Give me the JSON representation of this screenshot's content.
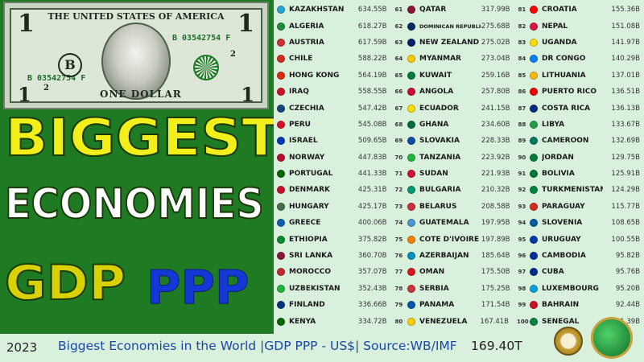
{
  "bill": {
    "top_text": "THE UNITED STATES OF AMERICA",
    "denomination": "1",
    "serial": "B 03542754 F",
    "seal_letter": "B",
    "plate": "2",
    "bottom_text": "ONE DOLLAR"
  },
  "headline": {
    "line1": "BIGGEST",
    "line2": "ECONOMIES",
    "line3": "GDP",
    "line4": "PPP"
  },
  "footer": {
    "year": "2023",
    "caption": "Biggest Economies in the World |GDP PPP - US$| Source:WB/IMF",
    "total": "169.40T"
  },
  "colors": {
    "headline_yellow": "#f3ef1a",
    "ppp_blue": "#1438d6",
    "caption_blue": "#1b47a8",
    "panel_green": "#1f7a24",
    "table_bg": "#d9f0dc"
  },
  "table": {
    "col1": [
      {
        "name": "KAZAKHSTAN",
        "value": "634.55B",
        "rank": "61",
        "flag": "#25a7d6"
      },
      {
        "name": "ALGERIA",
        "value": "618.27B",
        "rank": "62",
        "flag": "#1e8c3a"
      },
      {
        "name": "AUSTRIA",
        "value": "617.59B",
        "rank": "63",
        "flag": "#d32f2f"
      },
      {
        "name": "CHILE",
        "value": "588.22B",
        "rank": "64",
        "flag": "#d52b1e"
      },
      {
        "name": "HONG KONG",
        "value": "564.19B",
        "rank": "65",
        "flag": "#de2910"
      },
      {
        "name": "IRAQ",
        "value": "558.55B",
        "rank": "66",
        "flag": "#ce1126"
      },
      {
        "name": "CZECHIA",
        "value": "547.42B",
        "rank": "67",
        "flag": "#11457e"
      },
      {
        "name": "PERU",
        "value": "545.08B",
        "rank": "68",
        "flag": "#d91023"
      },
      {
        "name": "ISRAEL",
        "value": "509.65B",
        "rank": "69",
        "flag": "#0038b8"
      },
      {
        "name": "NORWAY",
        "value": "447.83B",
        "rank": "70",
        "flag": "#ba0c2f"
      },
      {
        "name": "PORTUGAL",
        "value": "441.33B",
        "rank": "71",
        "flag": "#006600"
      },
      {
        "name": "DENMARK",
        "value": "425.31B",
        "rank": "72",
        "flag": "#c8102e"
      },
      {
        "name": "HUNGARY",
        "value": "425.17B",
        "rank": "73",
        "flag": "#436f4d"
      },
      {
        "name": "GREECE",
        "value": "400.06B",
        "rank": "74",
        "flag": "#0d5eaf"
      },
      {
        "name": "ETHIOPIA",
        "value": "375.82B",
        "rank": "75",
        "flag": "#078930"
      },
      {
        "name": "SRI LANKA",
        "value": "360.70B",
        "rank": "76",
        "flag": "#8d153a"
      },
      {
        "name": "MOROCCO",
        "value": "357.07B",
        "rank": "77",
        "flag": "#c1272d"
      },
      {
        "name": "UZBEKISTAN",
        "value": "352.43B",
        "rank": "78",
        "flag": "#1eb53a"
      },
      {
        "name": "FINLAND",
        "value": "336.66B",
        "rank": "79",
        "flag": "#003580"
      },
      {
        "name": "KENYA",
        "value": "334.72B",
        "rank": "80",
        "flag": "#006600"
      }
    ],
    "col2": [
      {
        "name": "QATAR",
        "value": "317.99B",
        "rank": "81",
        "flag": "#8a1538"
      },
      {
        "name": "DOMINICAN REPUBLIC",
        "value": "275.68B",
        "rank": "82",
        "flag": "#002d62"
      },
      {
        "name": "NEW ZEALAND",
        "value": "275.02B",
        "rank": "83",
        "flag": "#012169"
      },
      {
        "name": "MYANMAR",
        "value": "273.04B",
        "rank": "84",
        "flag": "#fecb00"
      },
      {
        "name": "KUWAIT",
        "value": "259.16B",
        "rank": "85",
        "flag": "#007a3d"
      },
      {
        "name": "ANGOLA",
        "value": "257.80B",
        "rank": "86",
        "flag": "#cc092f"
      },
      {
        "name": "ECUADOR",
        "value": "241.15B",
        "rank": "87",
        "flag": "#ffdd00"
      },
      {
        "name": "GHANA",
        "value": "234.60B",
        "rank": "88",
        "flag": "#006b3f"
      },
      {
        "name": "SLOVAKIA",
        "value": "228.33B",
        "rank": "89",
        "flag": "#0b4ea2"
      },
      {
        "name": "TANZANIA",
        "value": "223.92B",
        "rank": "90",
        "flag": "#1eb53a"
      },
      {
        "name": "SUDAN",
        "value": "221.93B",
        "rank": "91",
        "flag": "#d21034"
      },
      {
        "name": "BULGARIA",
        "value": "210.32B",
        "rank": "92",
        "flag": "#00966e"
      },
      {
        "name": "BELARUS",
        "value": "208.58B",
        "rank": "93",
        "flag": "#c8313e"
      },
      {
        "name": "GUATEMALA",
        "value": "197.95B",
        "rank": "94",
        "flag": "#4997d0"
      },
      {
        "name": "COTE D'IVOIRE",
        "value": "197.89B",
        "rank": "95",
        "flag": "#f77f00"
      },
      {
        "name": "AZERBAIJAN",
        "value": "185.64B",
        "rank": "96",
        "flag": "#0092bc"
      },
      {
        "name": "OMAN",
        "value": "175.50B",
        "rank": "97",
        "flag": "#db161b"
      },
      {
        "name": "SERBIA",
        "value": "175.25B",
        "rank": "98",
        "flag": "#c6363c"
      },
      {
        "name": "PANAMA",
        "value": "171.54B",
        "rank": "99",
        "flag": "#005aa7"
      },
      {
        "name": "VENEZUELA",
        "value": "167.41B",
        "rank": "100",
        "flag": "#ffcc00"
      }
    ],
    "col3": [
      {
        "name": "CROATIA",
        "value": "155.36B",
        "flag": "#ff0000"
      },
      {
        "name": "NEPAL",
        "value": "151.08B",
        "flag": "#dc143c"
      },
      {
        "name": "UGANDA",
        "value": "141.97B",
        "flag": "#fcdc04"
      },
      {
        "name": "DR CONGO",
        "value": "140.29B",
        "flag": "#007fff"
      },
      {
        "name": "LITHUANIA",
        "value": "137.01B",
        "flag": "#fdb913"
      },
      {
        "name": "PUERTO RICO",
        "value": "136.51B",
        "flag": "#ed0000"
      },
      {
        "name": "COSTA RICA",
        "value": "136.13B",
        "flag": "#002b7f"
      },
      {
        "name": "LIBYA",
        "value": "133.67B",
        "flag": "#239e46"
      },
      {
        "name": "CAMEROON",
        "value": "132.69B",
        "flag": "#007a5e"
      },
      {
        "name": "JORDAN",
        "value": "129.75B",
        "flag": "#007a3d"
      },
      {
        "name": "BOLIVIA",
        "value": "125.91B",
        "flag": "#007934"
      },
      {
        "name": "TURKMENISTAN",
        "value": "124.29B",
        "flag": "#00843d"
      },
      {
        "name": "PARAGUAY",
        "value": "115.77B",
        "flag": "#d52b1e"
      },
      {
        "name": "SLOVENIA",
        "value": "108.65B",
        "flag": "#005da4"
      },
      {
        "name": "URUGUAY",
        "value": "100.55B",
        "flag": "#0038a8"
      },
      {
        "name": "CAMBODIA",
        "value": "95.82B",
        "flag": "#032ea1"
      },
      {
        "name": "CUBA",
        "value": "95.76B",
        "flag": "#002a8f"
      },
      {
        "name": "LUXEMBOURG",
        "value": "95.20B",
        "flag": "#00a1de"
      },
      {
        "name": "BAHRAIN",
        "value": "92.44B",
        "flag": "#ce1126"
      },
      {
        "name": "SENEGAL",
        "value": "81.39B",
        "flag": "#00853f"
      }
    ]
  }
}
